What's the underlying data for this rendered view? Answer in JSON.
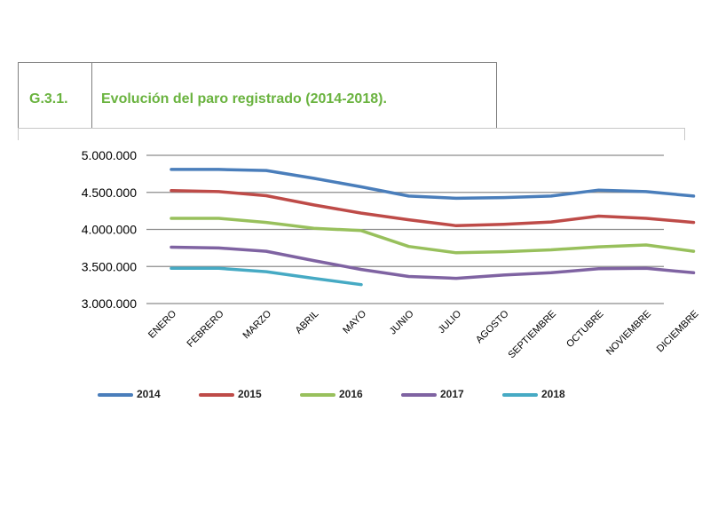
{
  "header": {
    "figure_number": "G.3.1.",
    "title": "Evolución del paro registrado (2014-2018)."
  },
  "chart_data": {
    "type": "line",
    "title": "Evolución del paro registrado (2014-2018).",
    "xlabel": "",
    "ylabel": "",
    "categories": [
      "ENERO",
      "FEBRERO",
      "MARZO",
      "ABRIL",
      "MAYO",
      "JUNIO",
      "JULIO",
      "AGOSTO",
      "SEPTIEMBRE",
      "OCTUBRE",
      "NOVIEMBRE",
      "DICIEMBRE"
    ],
    "ylim": [
      3000000,
      5000000
    ],
    "yticks": [
      5000000,
      4500000,
      4000000,
      3500000,
      3000000
    ],
    "ytick_labels": [
      "5.000.000",
      "4.500.000",
      "4.000.000",
      "3.500.000",
      "3.000.000"
    ],
    "grid": true,
    "legend_position": "bottom",
    "series": [
      {
        "name": "2014",
        "color": "#4a7ebb",
        "values": [
          4810000,
          4810000,
          4795000,
          4690000,
          4575000,
          4450000,
          4420000,
          4430000,
          4450000,
          4530000,
          4510000,
          4450000
        ]
      },
      {
        "name": "2015",
        "color": "#be4b48",
        "values": [
          4525000,
          4510000,
          4455000,
          4330000,
          4220000,
          4130000,
          4050000,
          4070000,
          4100000,
          4180000,
          4150000,
          4095000
        ]
      },
      {
        "name": "2016",
        "color": "#98c05c",
        "values": [
          4150000,
          4150000,
          4095000,
          4015000,
          3985000,
          3770000,
          3685000,
          3700000,
          3725000,
          3765000,
          3790000,
          3705000
        ]
      },
      {
        "name": "2017",
        "color": "#7f63a2",
        "values": [
          3760000,
          3750000,
          3705000,
          3580000,
          3460000,
          3365000,
          3340000,
          3385000,
          3415000,
          3470000,
          3475000,
          3415000
        ]
      },
      {
        "name": "2018",
        "color": "#46aac4",
        "values": [
          3475000,
          3475000,
          3430000,
          3340000,
          3255000,
          null,
          null,
          null,
          null,
          null,
          null,
          null
        ]
      }
    ]
  }
}
